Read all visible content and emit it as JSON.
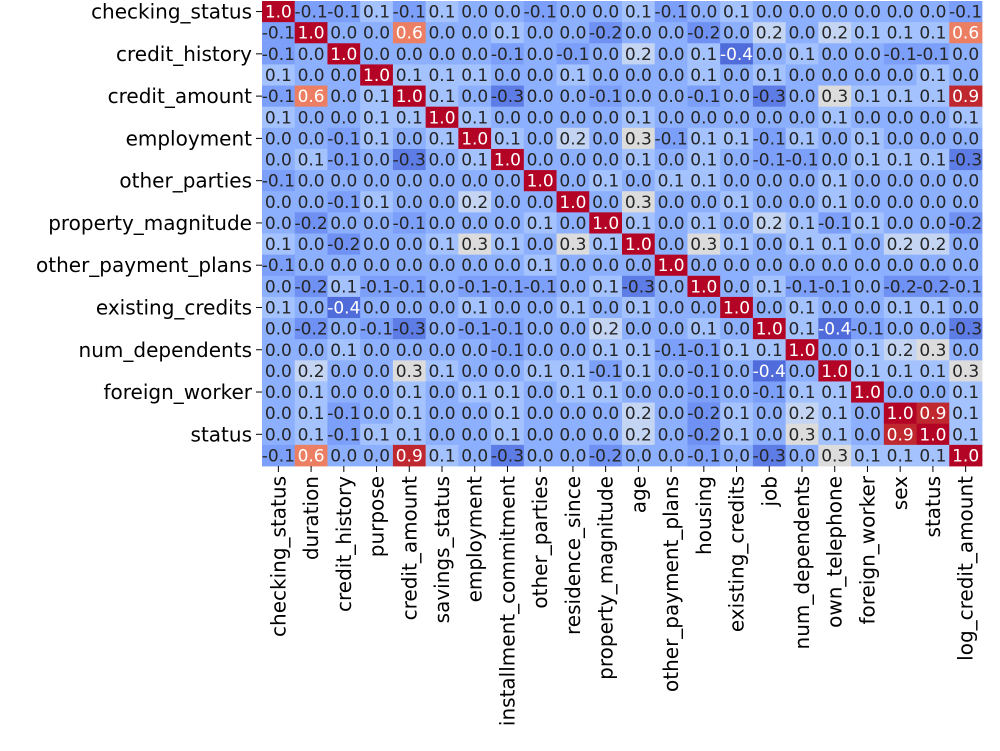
{
  "chart_data": {
    "type": "heatmap",
    "title": "",
    "colormap": "coolwarm",
    "vmin": -1,
    "vmax": 1,
    "value_format": "one-decimal",
    "rows": [
      "checking_status",
      "duration",
      "credit_history",
      "purpose",
      "credit_amount",
      "savings_status",
      "employment",
      "installment_commitment",
      "other_parties",
      "residence_since",
      "property_magnitude",
      "age",
      "other_payment_plans",
      "housing",
      "existing_credits",
      "job",
      "num_dependents",
      "own_telephone",
      "foreign_worker",
      "sex",
      "status",
      "log_credit_amount"
    ],
    "row_labels_shown": [
      "checking_status",
      "credit_history",
      "credit_amount",
      "employment",
      "other_parties",
      "property_magnitude",
      "other_payment_plans",
      "existing_credits",
      "num_dependents",
      "foreign_worker",
      "status"
    ],
    "columns": [
      "checking_status",
      "duration",
      "credit_history",
      "purpose",
      "credit_amount",
      "savings_status",
      "employment",
      "installment_commitment",
      "other_parties",
      "residence_since",
      "property_magnitude",
      "age",
      "other_payment_plans",
      "housing",
      "existing_credits",
      "job",
      "num_dependents",
      "own_telephone",
      "foreign_worker",
      "sex",
      "status",
      "log_credit_amount"
    ],
    "matrix": [
      [
        1.0,
        -0.1,
        -0.1,
        0.1,
        -0.1,
        0.1,
        0.0,
        0.0,
        -0.1,
        0.0,
        0.0,
        0.1,
        -0.1,
        0.0,
        0.1,
        0.0,
        0.0,
        0.0,
        0.0,
        0.0,
        0.0,
        -0.1
      ],
      [
        -0.1,
        1.0,
        0.0,
        0.0,
        0.6,
        0.0,
        0.0,
        0.1,
        0.0,
        0.0,
        -0.2,
        0.0,
        0.0,
        -0.2,
        0.0,
        0.2,
        0.0,
        0.2,
        0.1,
        0.1,
        0.1,
        0.6
      ],
      [
        -0.1,
        0.0,
        1.0,
        0.0,
        0.0,
        0.0,
        0.0,
        -0.1,
        0.0,
        -0.1,
        0.0,
        0.2,
        0.0,
        0.1,
        -0.4,
        0.0,
        0.1,
        0.0,
        0.0,
        -0.1,
        -0.1,
        0.0
      ],
      [
        0.1,
        0.0,
        0.0,
        1.0,
        0.1,
        0.1,
        0.1,
        0.0,
        0.0,
        0.1,
        0.0,
        0.0,
        0.0,
        0.1,
        0.0,
        0.1,
        0.0,
        0.0,
        0.0,
        0.0,
        0.1,
        0.0
      ],
      [
        -0.1,
        0.6,
        0.0,
        0.1,
        1.0,
        0.1,
        0.0,
        -0.3,
        0.0,
        0.0,
        -0.1,
        0.0,
        0.0,
        -0.1,
        0.0,
        -0.3,
        0.0,
        0.3,
        0.1,
        0.1,
        0.1,
        0.9
      ],
      [
        0.1,
        0.0,
        0.0,
        0.1,
        0.1,
        1.0,
        0.1,
        0.0,
        0.0,
        0.0,
        0.0,
        0.1,
        0.0,
        0.0,
        0.0,
        0.0,
        0.0,
        0.1,
        0.0,
        0.0,
        0.0,
        0.1
      ],
      [
        0.0,
        0.0,
        -0.1,
        0.1,
        0.0,
        0.1,
        1.0,
        0.1,
        0.0,
        0.2,
        0.0,
        0.3,
        -0.1,
        0.1,
        0.1,
        -0.1,
        0.1,
        0.0,
        0.1,
        0.0,
        0.0,
        0.0
      ],
      [
        0.0,
        0.1,
        -0.1,
        0.0,
        -0.3,
        0.0,
        0.1,
        1.0,
        0.0,
        0.0,
        0.0,
        0.1,
        0.0,
        0.1,
        0.0,
        -0.1,
        -0.1,
        0.0,
        0.1,
        0.1,
        0.1,
        -0.3
      ],
      [
        -0.1,
        0.0,
        0.0,
        0.0,
        0.0,
        0.0,
        0.0,
        0.0,
        1.0,
        0.0,
        0.1,
        0.0,
        0.1,
        0.1,
        0.0,
        0.0,
        0.0,
        0.1,
        0.0,
        0.0,
        0.0,
        0.0
      ],
      [
        0.0,
        0.0,
        -0.1,
        0.1,
        0.0,
        0.0,
        0.2,
        0.0,
        0.0,
        1.0,
        0.0,
        0.3,
        0.0,
        0.0,
        0.1,
        0.0,
        0.0,
        0.1,
        0.0,
        0.0,
        0.0,
        0.0
      ],
      [
        0.0,
        -0.2,
        0.0,
        0.0,
        -0.1,
        0.0,
        0.0,
        0.0,
        0.1,
        0.0,
        1.0,
        0.1,
        0.0,
        0.1,
        0.0,
        0.2,
        0.1,
        -0.1,
        0.1,
        0.0,
        0.0,
        -0.2
      ],
      [
        0.1,
        0.0,
        -0.2,
        0.0,
        0.0,
        0.1,
        0.3,
        0.1,
        0.0,
        0.3,
        0.1,
        1.0,
        0.0,
        0.3,
        0.1,
        0.0,
        0.1,
        0.1,
        0.0,
        0.2,
        0.2,
        0.0
      ],
      [
        -0.1,
        0.0,
        0.0,
        0.0,
        0.0,
        0.0,
        0.0,
        0.0,
        0.1,
        0.0,
        0.0,
        0.0,
        1.0,
        0.0,
        0.0,
        0.0,
        0.0,
        0.0,
        0.0,
        0.0,
        0.0,
        0.0
      ],
      [
        0.0,
        -0.2,
        0.1,
        -0.1,
        -0.1,
        0.0,
        -0.1,
        -0.1,
        -0.1,
        0.0,
        0.1,
        -0.3,
        0.0,
        1.0,
        0.0,
        0.1,
        -0.1,
        -0.1,
        0.0,
        -0.2,
        -0.2,
        -0.1
      ],
      [
        0.1,
        0.0,
        -0.4,
        0.0,
        0.0,
        0.0,
        0.1,
        0.0,
        0.0,
        0.1,
        0.0,
        0.1,
        0.0,
        0.0,
        1.0,
        0.0,
        0.1,
        0.0,
        0.0,
        0.1,
        0.1,
        0.0
      ],
      [
        0.0,
        -0.2,
        0.0,
        -0.1,
        -0.3,
        0.0,
        -0.1,
        -0.1,
        0.0,
        0.0,
        0.2,
        0.0,
        0.0,
        0.1,
        0.0,
        1.0,
        0.1,
        -0.4,
        -0.1,
        0.0,
        0.0,
        -0.3
      ],
      [
        0.0,
        0.0,
        0.1,
        0.0,
        0.0,
        0.0,
        0.0,
        -0.1,
        0.0,
        0.0,
        0.1,
        0.1,
        -0.1,
        -0.1,
        0.1,
        0.1,
        1.0,
        0.0,
        0.1,
        0.2,
        0.3,
        0.0
      ],
      [
        0.0,
        0.2,
        0.0,
        0.0,
        0.3,
        0.1,
        0.0,
        0.0,
        0.1,
        0.1,
        -0.1,
        0.1,
        0.0,
        -0.1,
        0.0,
        -0.4,
        0.0,
        1.0,
        0.1,
        0.1,
        0.1,
        0.3
      ],
      [
        0.0,
        0.1,
        0.0,
        0.0,
        0.1,
        0.0,
        0.1,
        0.1,
        0.0,
        0.1,
        0.1,
        0.0,
        0.0,
        -0.1,
        0.0,
        -0.1,
        0.1,
        0.1,
        1.0,
        0.0,
        0.0,
        0.1
      ],
      [
        0.0,
        0.1,
        -0.1,
        0.0,
        0.1,
        0.0,
        0.0,
        0.1,
        0.0,
        0.0,
        0.0,
        0.2,
        0.0,
        -0.2,
        0.1,
        0.0,
        0.2,
        0.1,
        0.0,
        1.0,
        0.9,
        0.1
      ],
      [
        0.0,
        0.1,
        -0.1,
        0.1,
        0.1,
        0.0,
        0.0,
        0.1,
        0.0,
        0.0,
        0.0,
        0.2,
        0.0,
        -0.2,
        0.1,
        0.0,
        0.3,
        0.1,
        0.0,
        0.9,
        1.0,
        0.1
      ],
      [
        -0.1,
        0.6,
        0.0,
        0.0,
        0.9,
        0.1,
        0.0,
        -0.3,
        0.0,
        0.0,
        -0.2,
        0.0,
        0.0,
        -0.1,
        0.0,
        -0.3,
        0.0,
        0.3,
        0.1,
        0.1,
        0.1,
        1.0
      ]
    ]
  }
}
